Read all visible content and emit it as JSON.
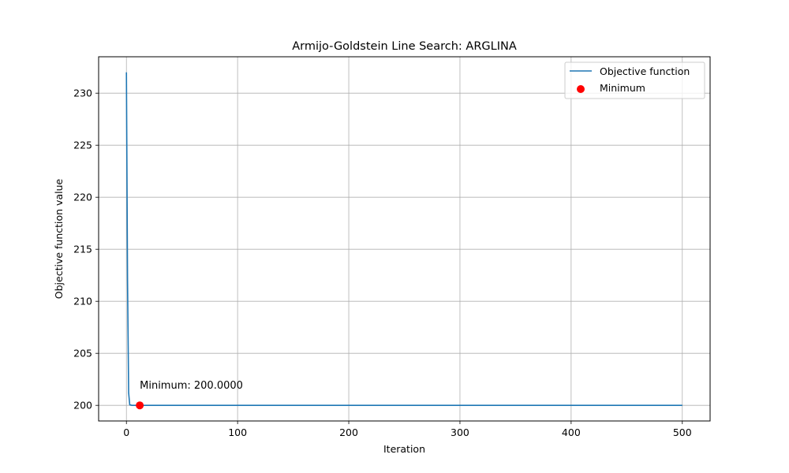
{
  "chart_data": {
    "type": "line",
    "title": "Armijo-Goldstein Line Search: ARGLINA",
    "xlabel": "Iteration",
    "ylabel": "Objective function value",
    "xlim": [
      -25,
      525
    ],
    "ylim": [
      198.5,
      233.5
    ],
    "xticks": [
      0,
      100,
      200,
      300,
      400,
      500
    ],
    "yticks": [
      200,
      205,
      210,
      215,
      220,
      225,
      230
    ],
    "grid": true,
    "legend_position": "top-right",
    "series": [
      {
        "name": "Objective function",
        "color": "#1f77b4",
        "x": [
          0,
          1,
          2,
          3,
          5,
          10,
          20,
          50,
          100,
          200,
          300,
          400,
          500
        ],
        "y": [
          232.0,
          212.0,
          201.2,
          200.05,
          200.0,
          200.0,
          200.0,
          200.0,
          200.0,
          200.0,
          200.0,
          200.0,
          200.0
        ]
      }
    ],
    "minimum": {
      "name": "Minimum",
      "color": "#ff0000",
      "x": 12,
      "y": 200.0,
      "label": "Minimum: 200.0000"
    }
  }
}
